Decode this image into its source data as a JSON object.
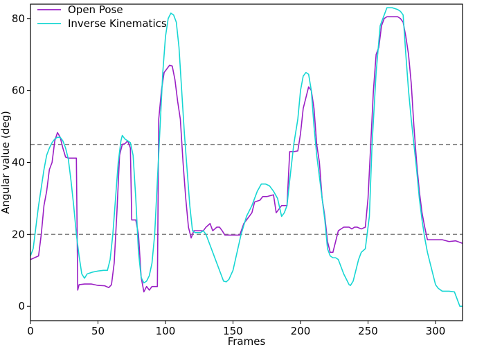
{
  "chart_data": {
    "type": "line",
    "title": "",
    "xlabel": "Frames",
    "ylabel": "Angular value (deg)",
    "xlim": [
      0,
      320
    ],
    "ylim": [
      -4,
      84
    ],
    "xticks": [
      0,
      50,
      100,
      150,
      200,
      250,
      300
    ],
    "yticks": [
      0,
      20,
      40,
      60,
      80
    ],
    "xtick_labels": [
      "0",
      "50",
      "100",
      "150",
      "200",
      "250",
      "300"
    ],
    "ytick_labels": [
      "0",
      "20",
      "40",
      "60",
      "80"
    ],
    "grid": false,
    "legend_position": "top-left",
    "reference_lines": [
      {
        "axis": "y",
        "value": 45,
        "style": "dashed",
        "color": "#7f7f7f"
      },
      {
        "axis": "y",
        "value": 20,
        "style": "dashed",
        "color": "#7f7f7f"
      }
    ],
    "series": [
      {
        "name": "Open Pose",
        "color": "#9a1fc4",
        "points": [
          [
            0,
            13
          ],
          [
            3,
            13.5
          ],
          [
            6,
            14
          ],
          [
            8,
            20
          ],
          [
            10,
            28
          ],
          [
            12,
            32
          ],
          [
            14,
            38
          ],
          [
            16,
            40
          ],
          [
            18,
            46
          ],
          [
            20,
            48.3
          ],
          [
            22,
            47
          ],
          [
            24,
            44
          ],
          [
            26,
            41.5
          ],
          [
            28,
            41.2
          ],
          [
            30,
            41.2
          ],
          [
            32,
            41.2
          ],
          [
            34,
            41.2
          ],
          [
            35,
            4.5
          ],
          [
            36,
            6
          ],
          [
            40,
            6.2
          ],
          [
            45,
            6.2
          ],
          [
            50,
            5.8
          ],
          [
            55,
            5.7
          ],
          [
            58,
            5.2
          ],
          [
            60,
            6
          ],
          [
            62,
            12
          ],
          [
            64,
            26
          ],
          [
            66,
            42
          ],
          [
            68,
            45
          ],
          [
            70,
            45.2
          ],
          [
            72,
            46
          ],
          [
            74,
            44
          ],
          [
            75,
            24
          ],
          [
            78,
            24
          ],
          [
            80,
            20
          ],
          [
            82,
            8
          ],
          [
            84,
            4
          ],
          [
            86,
            5.5
          ],
          [
            88,
            4.5
          ],
          [
            90,
            5.5
          ],
          [
            94,
            5.5
          ],
          [
            95,
            52
          ],
          [
            97,
            60
          ],
          [
            99,
            65
          ],
          [
            101,
            66
          ],
          [
            103,
            67
          ],
          [
            105,
            66.8
          ],
          [
            107,
            63
          ],
          [
            109,
            57
          ],
          [
            111,
            52
          ],
          [
            113,
            40
          ],
          [
            115,
            30
          ],
          [
            117,
            22
          ],
          [
            119,
            19
          ],
          [
            120,
            20
          ],
          [
            121,
            21
          ],
          [
            125,
            21
          ],
          [
            128,
            21
          ],
          [
            130,
            22
          ],
          [
            133,
            23
          ],
          [
            135,
            21
          ],
          [
            138,
            22
          ],
          [
            140,
            22
          ],
          [
            142,
            21
          ],
          [
            144,
            19.8
          ],
          [
            150,
            19.8
          ],
          [
            155,
            19.8
          ],
          [
            158,
            23
          ],
          [
            160,
            24
          ],
          [
            162,
            25
          ],
          [
            164,
            26
          ],
          [
            166,
            29
          ],
          [
            170,
            29.5
          ],
          [
            172,
            30.5
          ],
          [
            175,
            30.5
          ],
          [
            180,
            31
          ],
          [
            182,
            26
          ],
          [
            186,
            28
          ],
          [
            190,
            28
          ],
          [
            192,
            43
          ],
          [
            195,
            43
          ],
          [
            198,
            43.2
          ],
          [
            200,
            48
          ],
          [
            202,
            55
          ],
          [
            204,
            58
          ],
          [
            206,
            61
          ],
          [
            208,
            60
          ],
          [
            210,
            55
          ],
          [
            212,
            45
          ],
          [
            214,
            40
          ],
          [
            216,
            30
          ],
          [
            218,
            25
          ],
          [
            220,
            18
          ],
          [
            222,
            15
          ],
          [
            224,
            15
          ],
          [
            226,
            18
          ],
          [
            228,
            21
          ],
          [
            232,
            22
          ],
          [
            236,
            22
          ],
          [
            238,
            21.5
          ],
          [
            240,
            22
          ],
          [
            242,
            22
          ],
          [
            245,
            21.5
          ],
          [
            248,
            22
          ],
          [
            250,
            30
          ],
          [
            252,
            45
          ],
          [
            254,
            60
          ],
          [
            256,
            70
          ],
          [
            258,
            72
          ],
          [
            260,
            78
          ],
          [
            262,
            80
          ],
          [
            264,
            80.5
          ],
          [
            268,
            80.5
          ],
          [
            272,
            80.5
          ],
          [
            274,
            80
          ],
          [
            276,
            79
          ],
          [
            278,
            75
          ],
          [
            280,
            70
          ],
          [
            282,
            62
          ],
          [
            284,
            50
          ],
          [
            286,
            40
          ],
          [
            288,
            32
          ],
          [
            290,
            26
          ],
          [
            292,
            22
          ],
          [
            294,
            18.5
          ],
          [
            300,
            18.5
          ],
          [
            305,
            18.5
          ],
          [
            310,
            18
          ],
          [
            315,
            18.2
          ],
          [
            320,
            17.5
          ]
        ]
      },
      {
        "name": "Inverse Kinematics",
        "color": "#17d6d3",
        "points": [
          [
            0,
            14
          ],
          [
            2,
            16
          ],
          [
            4,
            22
          ],
          [
            6,
            28
          ],
          [
            8,
            33
          ],
          [
            10,
            38
          ],
          [
            12,
            42
          ],
          [
            14,
            44
          ],
          [
            16,
            45.5
          ],
          [
            18,
            46.5
          ],
          [
            20,
            47
          ],
          [
            22,
            47
          ],
          [
            24,
            46
          ],
          [
            26,
            44
          ],
          [
            28,
            41
          ],
          [
            30,
            35
          ],
          [
            32,
            28
          ],
          [
            34,
            20
          ],
          [
            36,
            14
          ],
          [
            38,
            9
          ],
          [
            40,
            7.8
          ],
          [
            42,
            9
          ],
          [
            46,
            9.5
          ],
          [
            50,
            9.8
          ],
          [
            54,
            10
          ],
          [
            57,
            10
          ],
          [
            59,
            13
          ],
          [
            61,
            20
          ],
          [
            63,
            30
          ],
          [
            65,
            40
          ],
          [
            67,
            46
          ],
          [
            68,
            47.5
          ],
          [
            70,
            46.5
          ],
          [
            72,
            46
          ],
          [
            74,
            45.5
          ],
          [
            76,
            42
          ],
          [
            78,
            30
          ],
          [
            80,
            15
          ],
          [
            82,
            8
          ],
          [
            84,
            6.5
          ],
          [
            86,
            7
          ],
          [
            88,
            8.5
          ],
          [
            90,
            12
          ],
          [
            92,
            20
          ],
          [
            94,
            35
          ],
          [
            96,
            50
          ],
          [
            98,
            65
          ],
          [
            100,
            75
          ],
          [
            102,
            80
          ],
          [
            104,
            81.5
          ],
          [
            106,
            81
          ],
          [
            108,
            79
          ],
          [
            110,
            72
          ],
          [
            112,
            60
          ],
          [
            114,
            48
          ],
          [
            116,
            38
          ],
          [
            118,
            28
          ],
          [
            120,
            21
          ],
          [
            122,
            20.5
          ],
          [
            126,
            20.5
          ],
          [
            128,
            21
          ],
          [
            130,
            20
          ],
          [
            132,
            18
          ],
          [
            135,
            15
          ],
          [
            138,
            12
          ],
          [
            141,
            9
          ],
          [
            143,
            7
          ],
          [
            145,
            6.8
          ],
          [
            147,
            7.5
          ],
          [
            150,
            10
          ],
          [
            153,
            15
          ],
          [
            156,
            20
          ],
          [
            160,
            25
          ],
          [
            164,
            28
          ],
          [
            168,
            32
          ],
          [
            171,
            34
          ],
          [
            174,
            34
          ],
          [
            177,
            33.5
          ],
          [
            180,
            32
          ],
          [
            183,
            30
          ],
          [
            186,
            25
          ],
          [
            188,
            26
          ],
          [
            190,
            28
          ],
          [
            192,
            35
          ],
          [
            195,
            45
          ],
          [
            198,
            52
          ],
          [
            200,
            60
          ],
          [
            202,
            64
          ],
          [
            204,
            65
          ],
          [
            206,
            64.5
          ],
          [
            208,
            60
          ],
          [
            210,
            50
          ],
          [
            212,
            42
          ],
          [
            214,
            36
          ],
          [
            216,
            30
          ],
          [
            218,
            24
          ],
          [
            220,
            16
          ],
          [
            222,
            14
          ],
          [
            224,
            13.5
          ],
          [
            226,
            13.5
          ],
          [
            228,
            13
          ],
          [
            230,
            11
          ],
          [
            232,
            9
          ],
          [
            234,
            7.5
          ],
          [
            236,
            6
          ],
          [
            237,
            5.8
          ],
          [
            239,
            7
          ],
          [
            241,
            10
          ],
          [
            243,
            13
          ],
          [
            245,
            15
          ],
          [
            248,
            16
          ],
          [
            251,
            25
          ],
          [
            253,
            45
          ],
          [
            256,
            65
          ],
          [
            259,
            78
          ],
          [
            262,
            81
          ],
          [
            264,
            83
          ],
          [
            268,
            83
          ],
          [
            272,
            82.5
          ],
          [
            274,
            82
          ],
          [
            276,
            81
          ],
          [
            278,
            70
          ],
          [
            280,
            60
          ],
          [
            282,
            52
          ],
          [
            284,
            45
          ],
          [
            286,
            38
          ],
          [
            288,
            30
          ],
          [
            290,
            24
          ],
          [
            292,
            19
          ],
          [
            294,
            15
          ],
          [
            296,
            12
          ],
          [
            298,
            9
          ],
          [
            300,
            6
          ],
          [
            302,
            5
          ],
          [
            305,
            4.2
          ],
          [
            310,
            4.2
          ],
          [
            314,
            4
          ],
          [
            316,
            2
          ],
          [
            318,
            0
          ],
          [
            320,
            0
          ]
        ]
      }
    ]
  }
}
